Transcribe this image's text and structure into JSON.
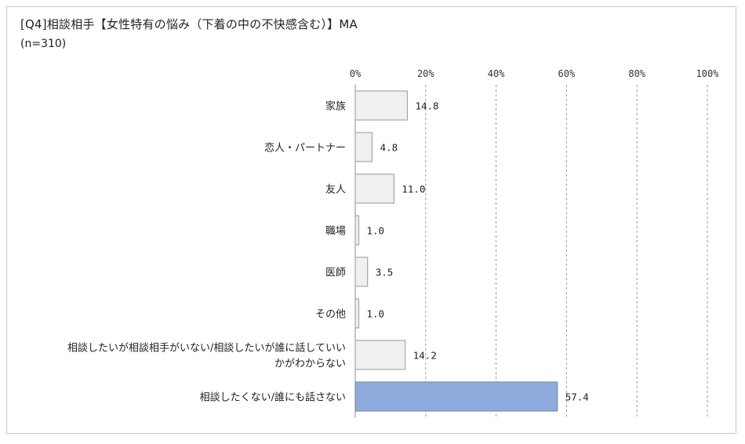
{
  "chart_data": {
    "type": "bar",
    "orientation": "horizontal",
    "title": "[Q4]相談相手【女性特有の悩み（下着の中の不快感含む）】MA",
    "subtitle": "(n=310)",
    "categories": [
      "家族",
      "恋人・パートナー",
      "友人",
      "職場",
      "医師",
      "その他",
      [
        "相談したいが相談相手がいない/相談したいが誰に話していい",
        "かがわからない"
      ],
      "相談したくない/誰にも話さない"
    ],
    "values": [
      14.8,
      4.8,
      11.0,
      1.0,
      3.5,
      1.0,
      14.2,
      57.4
    ],
    "value_labels": [
      "14.8",
      "4.8",
      "11.0",
      "1.0",
      "3.5",
      "1.0",
      "14.2",
      "57.4"
    ],
    "xlim": [
      0,
      100
    ],
    "xticks": [
      0,
      20,
      40,
      60,
      80,
      100
    ],
    "xtick_labels": [
      "0%",
      "20%",
      "40%",
      "60%",
      "80%",
      "100%"
    ],
    "grid": "vertical dashed",
    "highlight_index": 7,
    "colors": {
      "bar_fill": "#f0f0f0",
      "bar_stroke": "#a6a6a6",
      "highlight_fill": "#8faadc",
      "highlight_stroke": "#7f8fa6",
      "grid": "#9a9a9a",
      "frame": "#c8c8c8"
    }
  }
}
